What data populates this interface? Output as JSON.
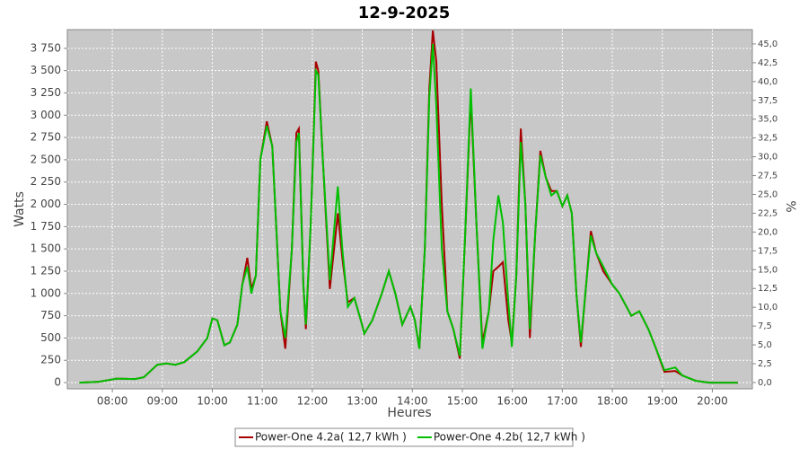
{
  "chart_data": {
    "type": "line",
    "title": "12-9-2025",
    "x_label": "Heures",
    "y_label": "Watts",
    "y2_label": "%",
    "x": [
      7.34,
      7.73,
      8.09,
      8.45,
      8.63,
      8.9,
      9.08,
      9.26,
      9.44,
      9.7,
      9.9,
      10.0,
      10.1,
      10.24,
      10.35,
      10.5,
      10.6,
      10.7,
      10.78,
      10.87,
      10.96,
      11.09,
      11.2,
      11.36,
      11.46,
      11.59,
      11.68,
      11.73,
      11.82,
      11.87,
      11.97,
      12.07,
      12.12,
      12.21,
      12.35,
      12.51,
      12.6,
      12.71,
      12.84,
      12.97,
      13.04,
      13.2,
      13.39,
      13.53,
      13.66,
      13.8,
      13.96,
      14.05,
      14.14,
      14.25,
      14.34,
      14.41,
      14.48,
      14.59,
      14.7,
      14.82,
      14.95,
      15.06,
      15.17,
      15.28,
      15.4,
      15.53,
      15.62,
      15.72,
      15.81,
      15.92,
      15.99,
      16.08,
      16.17,
      16.26,
      16.35,
      16.46,
      16.56,
      16.67,
      16.78,
      16.89,
      17.0,
      17.1,
      17.19,
      17.28,
      17.37,
      17.46,
      17.57,
      17.68,
      17.82,
      18.0,
      18.14,
      18.38,
      18.54,
      18.72,
      18.86,
      19.04,
      19.26,
      19.4,
      19.67,
      19.94,
      20.51
    ],
    "series": [
      {
        "name": "Power-One 4.2a( 12,7 kWh )",
        "color": "#a80000",
        "values": [
          0,
          10,
          45,
          40,
          60,
          200,
          215,
          200,
          230,
          350,
          500,
          720,
          700,
          420,
          450,
          650,
          1100,
          1400,
          1050,
          1200,
          2500,
          2930,
          2650,
          800,
          380,
          1500,
          2800,
          2850,
          1100,
          600,
          1800,
          3600,
          3500,
          2500,
          1050,
          1900,
          1400,
          900,
          950,
          700,
          550,
          700,
          1000,
          1250,
          1000,
          650,
          850,
          700,
          380,
          1500,
          3300,
          3950,
          3600,
          2000,
          800,
          600,
          270,
          1700,
          3200,
          1800,
          450,
          800,
          1250,
          1300,
          1350,
          700,
          450,
          1200,
          2850,
          2000,
          500,
          1700,
          2600,
          2300,
          2150,
          2150,
          1980,
          2100,
          1900,
          1000,
          400,
          1000,
          1700,
          1450,
          1250,
          1100,
          1000,
          750,
          800,
          600,
          400,
          120,
          130,
          80,
          20,
          0,
          0
        ]
      },
      {
        "name": "Power-One 4.2b( 12,7 kWh )",
        "color": "#00c000",
        "values": [
          0,
          10,
          45,
          40,
          60,
          200,
          215,
          200,
          230,
          350,
          500,
          720,
          700,
          420,
          450,
          650,
          1100,
          1300,
          1000,
          1200,
          2500,
          2880,
          2650,
          800,
          500,
          1500,
          2700,
          2800,
          1100,
          650,
          1800,
          3500,
          3450,
          2500,
          1150,
          2200,
          1500,
          850,
          950,
          700,
          550,
          700,
          1000,
          1250,
          1000,
          650,
          850,
          700,
          380,
          1500,
          3200,
          3800,
          3100,
          1500,
          800,
          600,
          300,
          1700,
          3300,
          1800,
          380,
          800,
          1600,
          2100,
          1800,
          900,
          400,
          1200,
          2700,
          2000,
          600,
          1700,
          2550,
          2300,
          2100,
          2150,
          1980,
          2100,
          1900,
          1000,
          450,
          1000,
          1650,
          1450,
          1300,
          1100,
          1000,
          750,
          800,
          600,
          400,
          140,
          170,
          80,
          20,
          0,
          0
        ]
      }
    ],
    "xlim": [
      7.1,
      20.8
    ],
    "ylim": [
      -70,
      3960
    ],
    "y2lim": [
      -0.84,
      46.9
    ],
    "xticks": [
      {
        "value": 8,
        "label": "08:00"
      },
      {
        "value": 9,
        "label": "09:00"
      },
      {
        "value": 10,
        "label": "10:00"
      },
      {
        "value": 11,
        "label": "11:00"
      },
      {
        "value": 12,
        "label": "12:00"
      },
      {
        "value": 13,
        "label": "13:00"
      },
      {
        "value": 14,
        "label": "14:00"
      },
      {
        "value": 15,
        "label": "15:00"
      },
      {
        "value": 16,
        "label": "16:00"
      },
      {
        "value": 17,
        "label": "17:00"
      },
      {
        "value": 18,
        "label": "18:00"
      },
      {
        "value": 19,
        "label": "19:00"
      },
      {
        "value": 20,
        "label": "20:00"
      }
    ],
    "yticks": [
      0,
      250,
      500,
      750,
      {
        "value": 1000,
        "label": "1 000"
      },
      {
        "value": 1250,
        "label": "1 250"
      },
      {
        "value": 1500,
        "label": "1 500"
      },
      {
        "value": 1750,
        "label": "1 750"
      },
      {
        "value": 2000,
        "label": "2 000"
      },
      {
        "value": 2250,
        "label": "2 250"
      },
      {
        "value": 2500,
        "label": "2 500"
      },
      {
        "value": 2750,
        "label": "2 750"
      },
      {
        "value": 3000,
        "label": "3 000"
      },
      {
        "value": 3250,
        "label": "3 250"
      },
      {
        "value": 3500,
        "label": "3 500"
      },
      {
        "value": 3750,
        "label": "3 750"
      }
    ],
    "y2ticks": [
      {
        "value": 0,
        "label": "0,0"
      },
      {
        "value": 2.5,
        "label": "2,5"
      },
      {
        "value": 5,
        "label": "5,0"
      },
      {
        "value": 7.5,
        "label": "7,5"
      },
      {
        "value": 10,
        "label": "10,0"
      },
      {
        "value": 12.5,
        "label": "12,5"
      },
      {
        "value": 15,
        "label": "15,0"
      },
      {
        "value": 17.5,
        "label": "17,5"
      },
      {
        "value": 20,
        "label": "20,0"
      },
      {
        "value": 22.5,
        "label": "22,5"
      },
      {
        "value": 25,
        "label": "25,0"
      },
      {
        "value": 27.5,
        "label": "27,5"
      },
      {
        "value": 30,
        "label": "30,0"
      },
      {
        "value": 32.5,
        "label": "32,5"
      },
      {
        "value": 35,
        "label": "35,0"
      },
      {
        "value": 37.5,
        "label": "37,5"
      },
      {
        "value": 40,
        "label": "40,0"
      },
      {
        "value": 42.5,
        "label": "42,5"
      },
      {
        "value": 45,
        "label": "45,0"
      }
    ],
    "grid": true,
    "legend": "bottom"
  }
}
